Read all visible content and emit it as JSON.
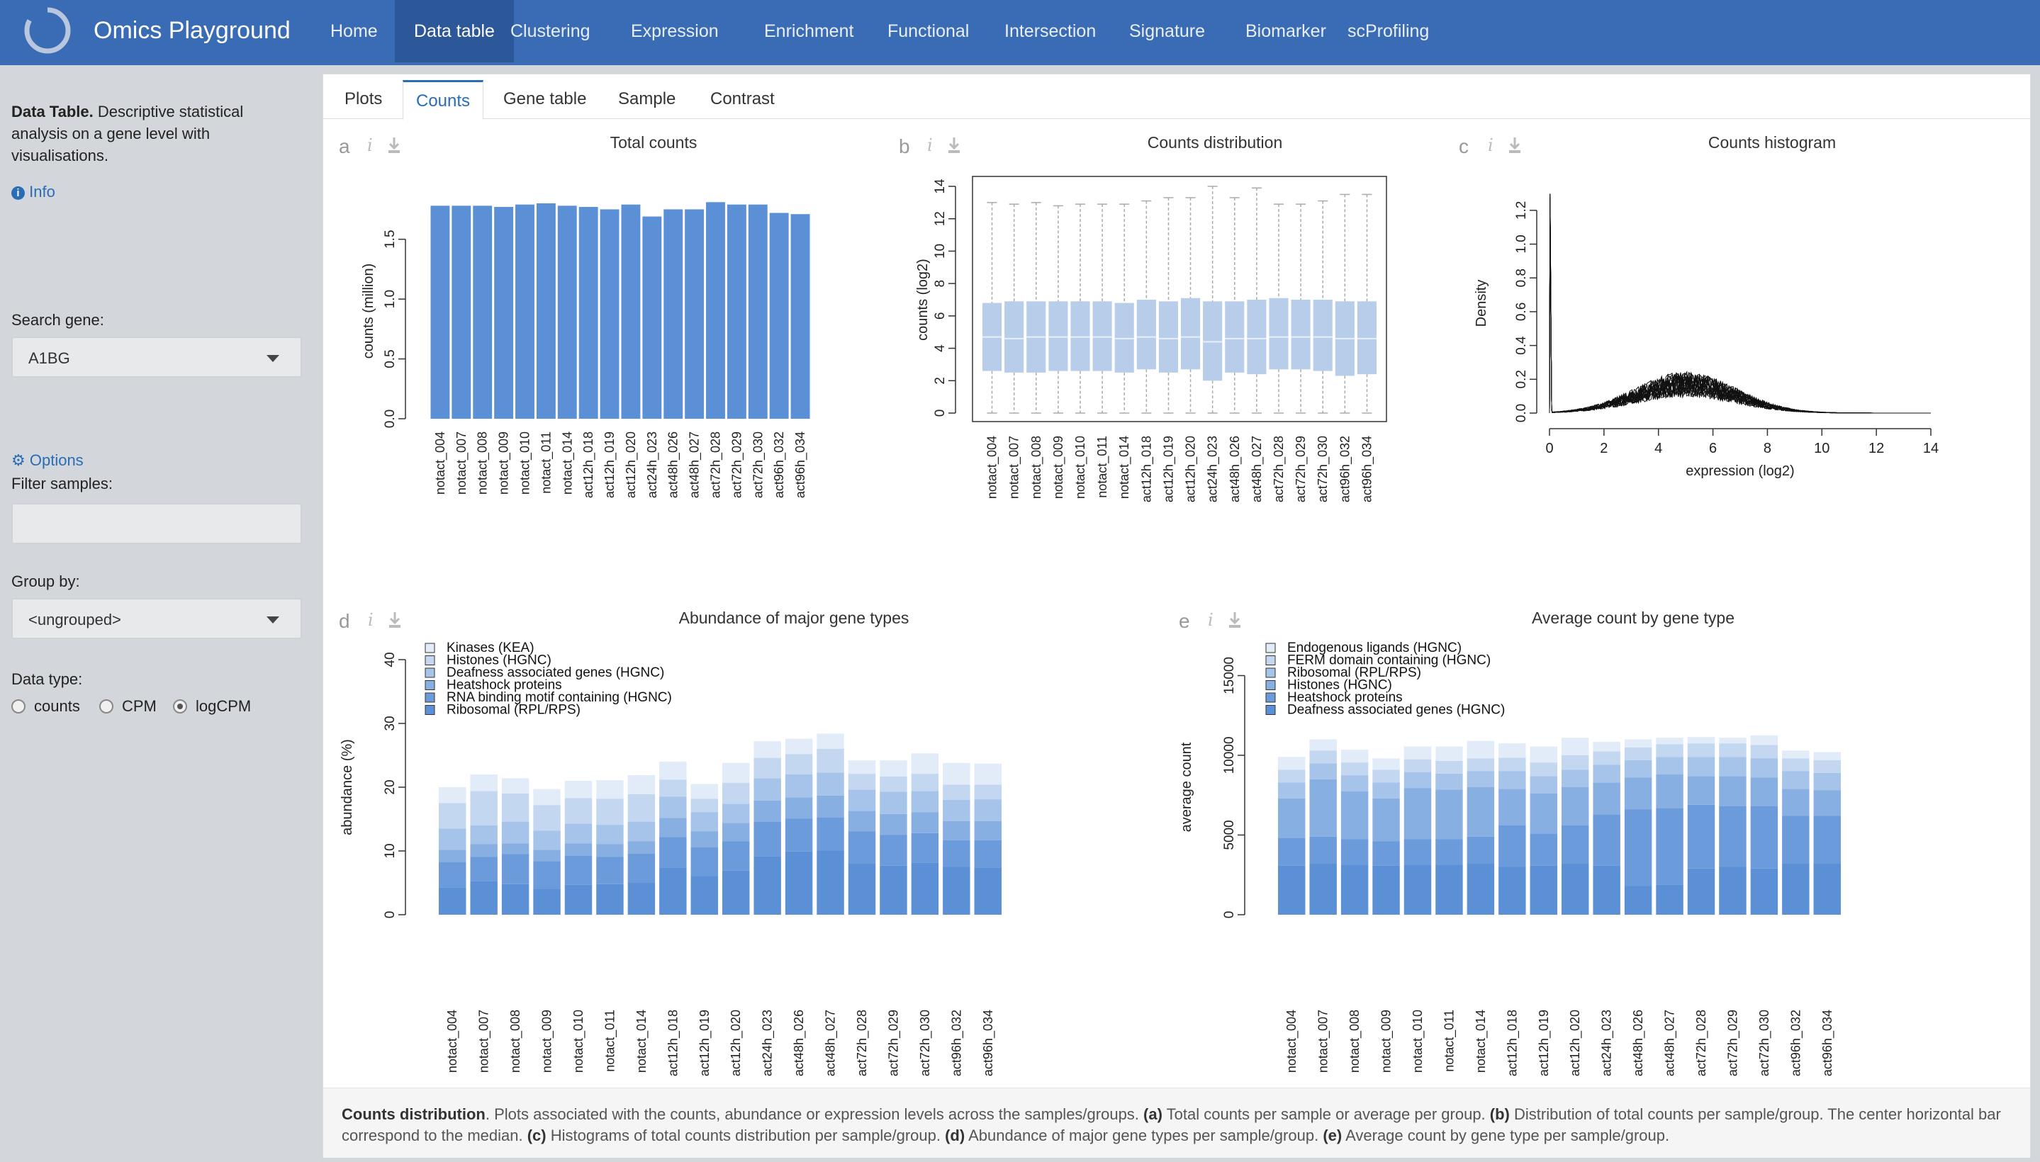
{
  "app": {
    "title": "Omics Playground"
  },
  "nav": {
    "items": [
      {
        "label": "Home",
        "active": false
      },
      {
        "label": "Data table",
        "active": true
      },
      {
        "label": "Clustering",
        "active": false
      },
      {
        "label": "Expression",
        "active": false
      },
      {
        "label": "Enrichment",
        "active": false
      },
      {
        "label": "Functional",
        "active": false
      },
      {
        "label": "Intersection",
        "active": false
      },
      {
        "label": "Signature",
        "active": false
      },
      {
        "label": "Biomarker",
        "active": false
      },
      {
        "label": "scProfiling",
        "active": false
      }
    ]
  },
  "sidebar": {
    "desc_bold": "Data Table.",
    "desc_rest": "Descriptive statistical analysis on a gene level with visualisations.",
    "info_label": "Info",
    "search_label": "Search gene:",
    "search_value": "A1BG",
    "options_label": "Options",
    "filter_label": "Filter samples:",
    "filter_value": "",
    "group_label": "Group by:",
    "group_value": "<ungrouped>",
    "datatype_label": "Data type:",
    "datatype_options": [
      "counts",
      "CPM",
      "logCPM"
    ],
    "datatype_selected": "logCPM"
  },
  "tabs": [
    {
      "label": "Plots",
      "active": false
    },
    {
      "label": "Counts",
      "active": true
    },
    {
      "label": "Gene table",
      "active": false
    },
    {
      "label": "Sample",
      "active": false
    },
    {
      "label": "Contrast",
      "active": false
    }
  ],
  "samples": [
    "notact_004",
    "notact_007",
    "notact_008",
    "notact_009",
    "notact_010",
    "notact_011",
    "notact_014",
    "act12h_018",
    "act12h_019",
    "act12h_020",
    "act24h_023",
    "act48h_026",
    "act48h_027",
    "act72h_028",
    "act72h_029",
    "act72h_030",
    "act96h_032",
    "act96h_034"
  ],
  "chart_data": [
    {
      "panel": "a",
      "type": "bar",
      "title": "Total counts",
      "ylabel": "counts (million)",
      "xlabel": "",
      "ylim": [
        0,
        1.8
      ],
      "yticks": [
        0.0,
        0.5,
        1.0,
        1.5
      ],
      "categories": [
        "notact_004",
        "notact_007",
        "notact_008",
        "notact_009",
        "notact_010",
        "notact_011",
        "notact_014",
        "act12h_018",
        "act12h_019",
        "act12h_020",
        "act24h_023",
        "act48h_026",
        "act48h_027",
        "act72h_028",
        "act72h_029",
        "act72h_030",
        "act96h_032",
        "act96h_034"
      ],
      "values": [
        1.78,
        1.78,
        1.78,
        1.77,
        1.79,
        1.8,
        1.78,
        1.77,
        1.75,
        1.79,
        1.69,
        1.75,
        1.75,
        1.81,
        1.79,
        1.79,
        1.72,
        1.71
      ],
      "color": "#5b8fd6"
    },
    {
      "panel": "b",
      "type": "boxplot",
      "title": "Counts distribution",
      "ylabel": "counts (log2)",
      "xlabel": "",
      "ylim": [
        0,
        14
      ],
      "yticks": [
        0,
        2,
        4,
        6,
        8,
        10,
        12,
        14
      ],
      "categories": [
        "notact_004",
        "notact_007",
        "notact_008",
        "notact_009",
        "notact_010",
        "notact_011",
        "notact_014",
        "act12h_018",
        "act12h_019",
        "act12h_020",
        "act24h_023",
        "act48h_026",
        "act48h_027",
        "act72h_028",
        "act72h_029",
        "act72h_030",
        "act96h_032",
        "act96h_034"
      ],
      "boxes": [
        {
          "min": 0,
          "q1": 2.6,
          "median": 4.7,
          "q3": 6.8,
          "max": 13.0
        },
        {
          "min": 0,
          "q1": 2.5,
          "median": 4.6,
          "q3": 6.9,
          "max": 12.9
        },
        {
          "min": 0,
          "q1": 2.5,
          "median": 4.7,
          "q3": 6.9,
          "max": 13.0
        },
        {
          "min": 0,
          "q1": 2.6,
          "median": 4.7,
          "q3": 6.9,
          "max": 12.8
        },
        {
          "min": 0,
          "q1": 2.6,
          "median": 4.7,
          "q3": 6.9,
          "max": 12.9
        },
        {
          "min": 0,
          "q1": 2.6,
          "median": 4.7,
          "q3": 6.9,
          "max": 12.9
        },
        {
          "min": 0,
          "q1": 2.5,
          "median": 4.6,
          "q3": 6.8,
          "max": 12.9
        },
        {
          "min": 0,
          "q1": 2.7,
          "median": 4.7,
          "q3": 7.0,
          "max": 13.1
        },
        {
          "min": 0,
          "q1": 2.5,
          "median": 4.6,
          "q3": 6.9,
          "max": 13.3
        },
        {
          "min": 0,
          "q1": 2.7,
          "median": 4.7,
          "q3": 7.1,
          "max": 13.3
        },
        {
          "min": 0,
          "q1": 2.0,
          "median": 4.4,
          "q3": 6.9,
          "max": 14.0
        },
        {
          "min": 0,
          "q1": 2.5,
          "median": 4.6,
          "q3": 6.9,
          "max": 13.3
        },
        {
          "min": 0,
          "q1": 2.4,
          "median": 4.6,
          "q3": 7.0,
          "max": 13.9
        },
        {
          "min": 0,
          "q1": 2.7,
          "median": 4.7,
          "q3": 7.1,
          "max": 12.9
        },
        {
          "min": 0,
          "q1": 2.7,
          "median": 4.7,
          "q3": 7.0,
          "max": 12.9
        },
        {
          "min": 0,
          "q1": 2.6,
          "median": 4.7,
          "q3": 7.0,
          "max": 13.1
        },
        {
          "min": 0,
          "q1": 2.3,
          "median": 4.6,
          "q3": 6.9,
          "max": 13.5
        },
        {
          "min": 0,
          "q1": 2.4,
          "median": 4.6,
          "q3": 6.9,
          "max": 13.5
        }
      ],
      "color": "#b7cdea"
    },
    {
      "panel": "c",
      "type": "line",
      "title": "Counts histogram",
      "xlabel": "expression (log2)",
      "ylabel": "Density",
      "xlim": [
        0,
        14
      ],
      "ylim": [
        0,
        1.3
      ],
      "xticks": [
        0,
        2,
        4,
        6,
        8,
        10,
        12,
        14
      ],
      "yticks": [
        0.0,
        0.2,
        0.4,
        0.6,
        0.8,
        1.0,
        1.2
      ],
      "series_count": 18,
      "peak_at_zero": 1.3,
      "mode_x": 5,
      "mode_density": 0.17
    },
    {
      "panel": "d",
      "type": "bar",
      "stacked": true,
      "title": "Abundance of major gene types",
      "ylabel": "abundance (%)",
      "xlabel": "",
      "ylim": [
        0,
        40
      ],
      "yticks": [
        0,
        10,
        20,
        30,
        40
      ],
      "legend": "top-left",
      "categories": [
        "notact_004",
        "notact_007",
        "notact_008",
        "notact_009",
        "notact_010",
        "notact_011",
        "notact_014",
        "act12h_018",
        "act12h_019",
        "act12h_020",
        "act24h_023",
        "act48h_026",
        "act48h_027",
        "act72h_028",
        "act72h_029",
        "act72h_030",
        "act96h_032",
        "act96h_034"
      ],
      "series": [
        {
          "name": "Ribosomal (RPL/RPS)",
          "color": "#5b8fd6",
          "values": [
            4.3,
            5.3,
            4.8,
            4.1,
            4.7,
            4.8,
            5.0,
            7.4,
            6.1,
            6.9,
            9.2,
            9.9,
            10.1,
            8.0,
            7.7,
            8.2,
            7.5,
            7.4
          ]
        },
        {
          "name": "RNA binding motif containing (HGNC)",
          "color": "#6c9bdb",
          "values": [
            4.0,
            3.8,
            4.7,
            4.3,
            4.6,
            4.3,
            4.6,
            4.8,
            4.5,
            4.6,
            5.4,
            5.2,
            5.2,
            5.1,
            4.8,
            4.6,
            4.2,
            4.3
          ]
        },
        {
          "name": "Heatshock proteins",
          "color": "#88afe2",
          "values": [
            1.9,
            2.0,
            1.7,
            1.8,
            1.9,
            2.0,
            1.9,
            3.0,
            2.5,
            2.9,
            3.3,
            3.3,
            3.4,
            3.2,
            3.3,
            3.3,
            3.0,
            3.0
          ]
        },
        {
          "name": "Deafness associated genes (HGNC)",
          "color": "#a6c3ea",
          "values": [
            3.3,
            2.9,
            3.4,
            3.0,
            3.1,
            3.0,
            3.1,
            3.3,
            3.0,
            3.0,
            3.5,
            3.6,
            3.6,
            3.3,
            3.5,
            3.3,
            3.3,
            3.4
          ]
        },
        {
          "name": "Histones (HGNC)",
          "color": "#c4d7f0",
          "values": [
            4.0,
            5.4,
            4.4,
            4.0,
            4.0,
            4.1,
            4.3,
            2.7,
            2.1,
            3.3,
            3.2,
            3.2,
            3.7,
            2.5,
            2.4,
            2.7,
            2.4,
            2.3
          ]
        },
        {
          "name": "Kinases (KEA)",
          "color": "#e2ebf8",
          "values": [
            2.5,
            2.6,
            2.4,
            2.5,
            2.7,
            2.9,
            3.0,
            2.8,
            2.3,
            3.1,
            2.6,
            2.4,
            2.4,
            2.1,
            2.5,
            3.2,
            3.4,
            3.3
          ]
        }
      ]
    },
    {
      "panel": "e",
      "type": "bar",
      "stacked": true,
      "title": "Average count by gene type",
      "ylabel": "average count",
      "xlabel": "",
      "ylim": [
        0,
        16000
      ],
      "yticks": [
        0,
        5000,
        10000,
        15000
      ],
      "legend": "top-left",
      "categories": [
        "notact_004",
        "notact_007",
        "notact_008",
        "notact_009",
        "notact_010",
        "notact_011",
        "notact_014",
        "act12h_018",
        "act12h_019",
        "act12h_020",
        "act24h_023",
        "act48h_026",
        "act48h_027",
        "act72h_028",
        "act72h_029",
        "act72h_030",
        "act96h_032",
        "act96h_034"
      ],
      "series": [
        {
          "name": "Deafness associated genes (HGNC)",
          "color": "#5b8fd6",
          "values": [
            3100,
            3200,
            3150,
            3100,
            3150,
            3150,
            3200,
            3000,
            3100,
            3200,
            3100,
            1800,
            1900,
            2900,
            3000,
            2900,
            3200,
            3200
          ]
        },
        {
          "name": "Heatshock proteins",
          "color": "#6c9bdb",
          "values": [
            1700,
            1700,
            1600,
            1500,
            1600,
            1600,
            1700,
            2600,
            2000,
            2400,
            3200,
            4800,
            4800,
            4000,
            3800,
            3900,
            3000,
            3000
          ]
        },
        {
          "name": "Histones (HGNC)",
          "color": "#88afe2",
          "values": [
            2500,
            3600,
            3000,
            2700,
            3200,
            3100,
            3100,
            2300,
            2500,
            2400,
            2000,
            2000,
            2100,
            1800,
            1900,
            1800,
            1700,
            1600
          ]
        },
        {
          "name": "Ribosomal (RPL/RPS)",
          "color": "#a6c3ea",
          "values": [
            1000,
            1000,
            1000,
            1000,
            1000,
            1000,
            1000,
            1100,
            1100,
            1100,
            1100,
            1100,
            1100,
            1200,
            1200,
            1200,
            1100,
            1100
          ]
        },
        {
          "name": "FERM domain containing (HGNC)",
          "color": "#c4d7f0",
          "values": [
            800,
            800,
            800,
            800,
            800,
            800,
            800,
            850,
            850,
            900,
            850,
            800,
            800,
            850,
            850,
            850,
            800,
            800
          ]
        },
        {
          "name": "Endogenous ligands (HGNC)",
          "color": "#e2ebf8",
          "values": [
            800,
            700,
            800,
            700,
            800,
            900,
            1100,
            900,
            1000,
            1100,
            600,
            500,
            400,
            400,
            350,
            600,
            500,
            500
          ]
        }
      ]
    }
  ],
  "panels": {
    "a": {
      "letter": "a"
    },
    "b": {
      "letter": "b"
    },
    "c": {
      "letter": "c"
    },
    "d": {
      "letter": "d"
    },
    "e": {
      "letter": "e"
    }
  },
  "caption": {
    "bold_title": "Counts distribution",
    "text_1": ". Plots associated with the counts, abundance or expression levels across the samples/groups. ",
    "a_tag": "(a)",
    "a_text": " Total counts per sample or average per group. ",
    "b_tag": "(b)",
    "b_text": " Distribution of total counts per sample/group. The center horizontal bar correspond to the median. ",
    "c_tag": "(c)",
    "c_text": " Histograms of total counts distribution per sample/group. ",
    "d_tag": "(d)",
    "d_text": " Abundance of major gene types per sample/group. ",
    "e_tag": "(e)",
    "e_text": " Average count by gene type per sample/group."
  }
}
